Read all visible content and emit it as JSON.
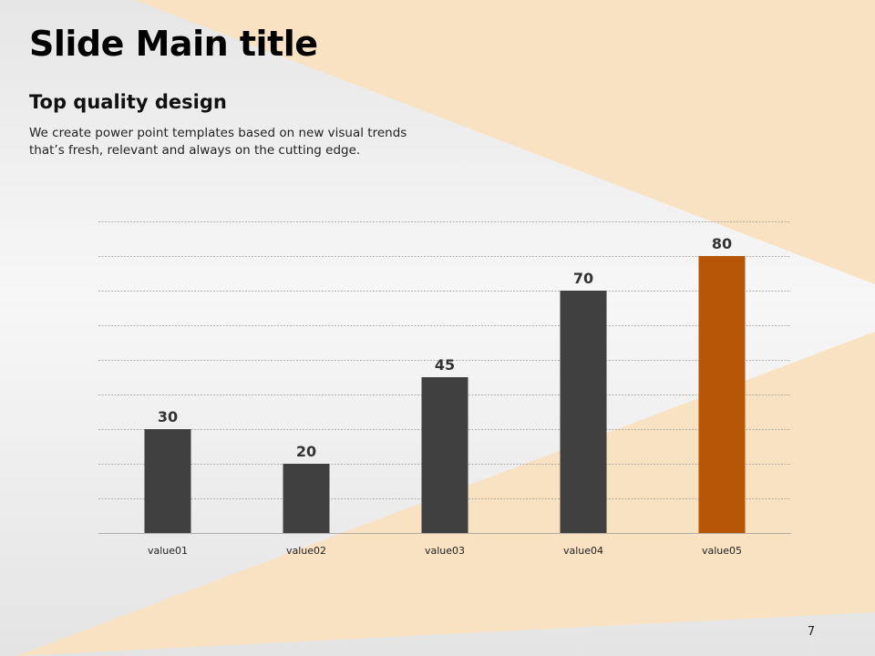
{
  "slide": {
    "title": "Slide Main title",
    "subtitle": "Top quality design",
    "body": "We create power point templates based on new visual trends that’s fresh, relevant and always on the cutting edge.",
    "page_number": "7"
  },
  "colors": {
    "background_light": "#f4f4f4",
    "accent_band": "#f8e2c2",
    "bar_default": "#404040",
    "bar_highlight": "#b65506",
    "grid": "#9a9a9a"
  },
  "chart_data": {
    "type": "bar",
    "categories": [
      "value01",
      "value02",
      "value03",
      "value04",
      "value05"
    ],
    "values": [
      30,
      20,
      45,
      70,
      80
    ],
    "highlight_index": 4,
    "title": "",
    "xlabel": "",
    "ylabel": "",
    "ylim": [
      0,
      90
    ],
    "grid": true,
    "grid_style": "dashed",
    "y_tick_labels_visible": false,
    "data_labels": true,
    "legend": "none"
  }
}
